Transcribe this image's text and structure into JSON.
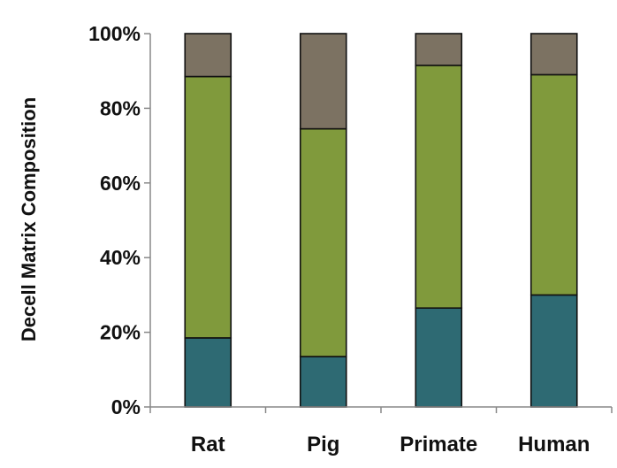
{
  "chart_data": {
    "type": "bar",
    "stacked": true,
    "title": "",
    "xlabel": "",
    "ylabel": "Decell Matrix Composition",
    "categories": [
      "Rat",
      "Pig",
      "Primate",
      "Human"
    ],
    "ylim": [
      0,
      100
    ],
    "yticks": [
      "0%",
      "20%",
      "40%",
      "60%",
      "80%",
      "100%"
    ],
    "grid": false,
    "legend": "none",
    "series": [
      {
        "values": [
          18.5,
          13.5,
          26.5,
          30
        ],
        "color": "#2E6A73"
      },
      {
        "values": [
          70,
          61,
          65,
          59
        ],
        "color": "#809A3C"
      },
      {
        "values": [
          11.5,
          25.5,
          8.5,
          11
        ],
        "color": "#7C7262"
      }
    ]
  }
}
